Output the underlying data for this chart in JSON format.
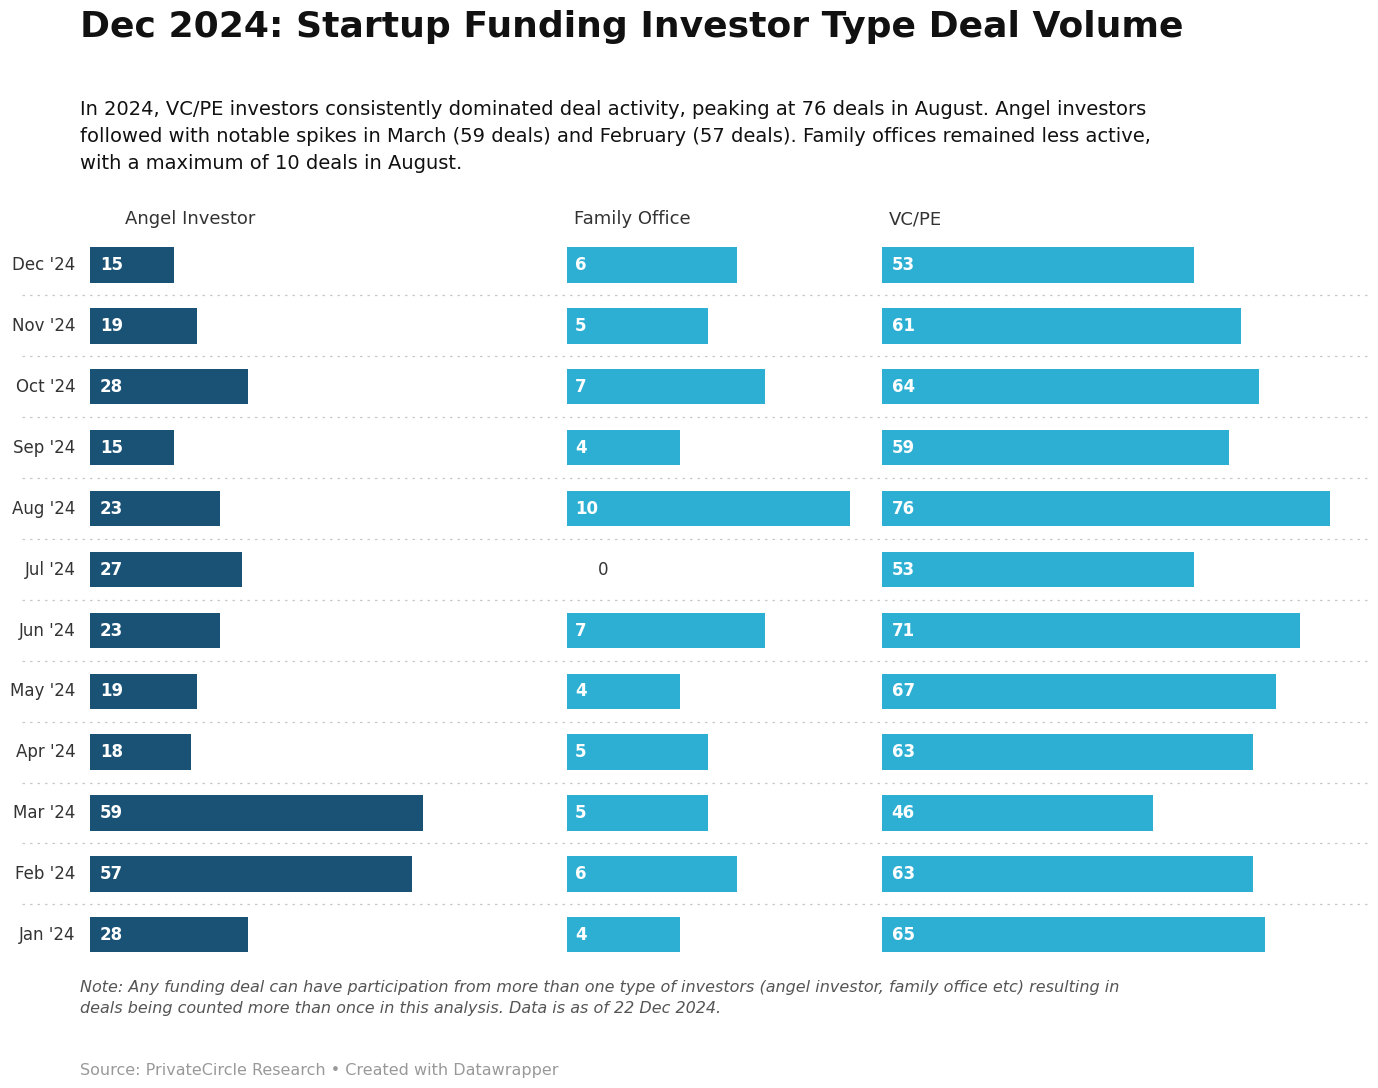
{
  "title": "Dec 2024: Startup Funding Investor Type Deal Volume",
  "subtitle": "In 2024, VC/PE investors consistently dominated deal activity, peaking at 76 deals in August. Angel investors\nfollowed with notable spikes in March (59 deals) and February (57 deals). Family offices remained less active,\nwith a maximum of 10 deals in August.",
  "note": "Note: Any funding deal can have participation from more than one type of investors (angel investor, family office etc) resulting in\ndeals being counted more than once in this analysis. Data is as of 22 Dec 2024.",
  "source": "Source: PrivateCircle Research • Created with Datawrapper",
  "months": [
    "Dec '24",
    "Nov '24",
    "Oct '24",
    "Sep '24",
    "Aug '24",
    "Jul '24",
    "Jun '24",
    "May '24",
    "Apr '24",
    "Mar '24",
    "Feb '24",
    "Jan '24"
  ],
  "angel": [
    15,
    19,
    28,
    15,
    23,
    27,
    23,
    19,
    18,
    59,
    57,
    28
  ],
  "family": [
    6,
    5,
    7,
    4,
    10,
    0,
    7,
    4,
    5,
    5,
    6,
    4
  ],
  "vcpe": [
    53,
    61,
    64,
    59,
    76,
    53,
    71,
    67,
    63,
    46,
    63,
    65
  ],
  "angel_color": "#1a5276",
  "family_color": "#2dafd4",
  "vcpe_color": "#2dafd4",
  "angel_color_dark": "#154360",
  "col_headers": [
    "Angel Investor",
    "Family Office",
    "VC/PE"
  ],
  "background_color": "#ffffff",
  "title_fontsize": 26,
  "subtitle_fontsize": 14,
  "label_fontsize": 12,
  "note_fontsize": 11.5,
  "source_fontsize": 11.5,
  "col_header_fontsize": 13,
  "bar_label_fontsize": 12
}
